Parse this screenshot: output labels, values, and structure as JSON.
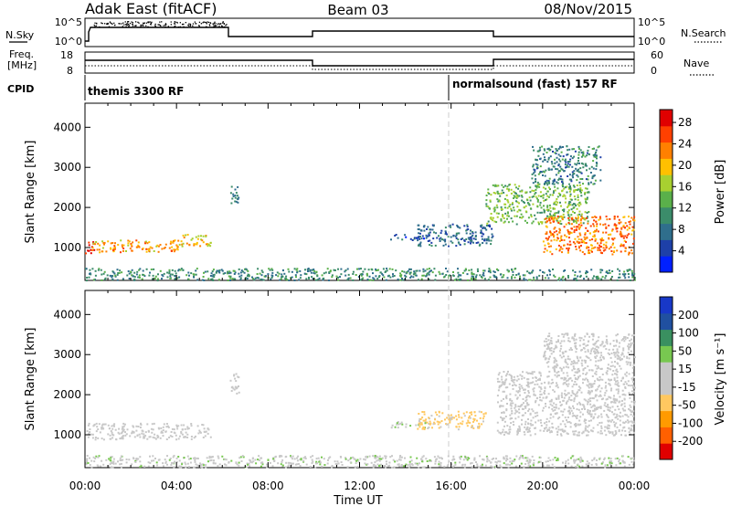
{
  "header": {
    "station": "Adak East (fitACF)",
    "beam": "Beam 03",
    "date": "08/Nov/2015"
  },
  "summary_panel": {
    "nsky_label": "N.Sky",
    "nsky_ticks": [
      "10^5",
      "10^0"
    ],
    "nsearch_label": "N.Search",
    "nsearch_ticks": [
      "10^5",
      "10^0"
    ],
    "freq_label_line1": "Freq.",
    "freq_label_line2": "[MHz]",
    "freq_ticks": [
      "18",
      "8"
    ],
    "nave_label": "Nave",
    "nave_ticks": [
      "60",
      "0"
    ],
    "cpid_label": "CPID",
    "cpid_entries": [
      {
        "text": "themis 3300 RF",
        "start_hour": 0
      },
      {
        "text": "normalsound (fast) 157 RF",
        "start_hour": 16
      }
    ]
  },
  "colors": {
    "power_scale": [
      "#0020ff",
      "#1e40a8",
      "#2f6e8c",
      "#3b8c6a",
      "#5ab04a",
      "#a8d030",
      "#ffc000",
      "#ff8000",
      "#ff4000",
      "#e00000"
    ],
    "velocity_scale": [
      "#e00000",
      "#ff6000",
      "#ff9a00",
      "#ffc860",
      "#c8c8c8",
      "#c8c8c8",
      "#78c850",
      "#3a9060",
      "#2050a0",
      "#1838c8"
    ]
  },
  "chart_data": [
    {
      "type": "heatmap",
      "panel": "power",
      "xlabel": "Time UT",
      "ylabel": "Slant Range [km]",
      "xlim": [
        0,
        24
      ],
      "ylim": [
        180,
        4600
      ],
      "xticks": [
        "00:00",
        "04:00",
        "08:00",
        "12:00",
        "16:00",
        "20:00",
        "00:00"
      ],
      "yticks": [
        "1000",
        "2000",
        "3000",
        "4000"
      ],
      "ytick_values": [
        1000,
        2000,
        3000,
        4000
      ],
      "marker_hour": 16,
      "colorbar": {
        "label": "Power [dB]",
        "ticks": [
          "4",
          "8",
          "12",
          "16",
          "20",
          "24",
          "28"
        ],
        "range": [
          0,
          30
        ]
      },
      "regions": [
        {
          "x": [
            0.0,
            0.4
          ],
          "y": [
            850,
            1200
          ],
          "value": 27
        },
        {
          "x": [
            0.3,
            4.2
          ],
          "y": [
            900,
            1200
          ],
          "value": 21
        },
        {
          "x": [
            4.2,
            5.5
          ],
          "y": [
            1050,
            1350
          ],
          "value": 19
        },
        {
          "x": [
            6.3,
            6.7
          ],
          "y": [
            2050,
            2550
          ],
          "value": 9
        },
        {
          "x": [
            13.3,
            15.0
          ],
          "y": [
            1200,
            1350
          ],
          "value": 6
        },
        {
          "x": [
            14.5,
            17.8
          ],
          "y": [
            1050,
            1600
          ],
          "value": 7
        },
        {
          "x": [
            17.5,
            22.0
          ],
          "y": [
            1600,
            2600
          ],
          "value": 14
        },
        {
          "x": [
            20.0,
            24.0
          ],
          "y": [
            850,
            1800
          ],
          "value": 23
        },
        {
          "x": [
            19.5,
            22.5
          ],
          "y": [
            2600,
            3550
          ],
          "value": 9
        },
        {
          "x": [
            0.0,
            24.0
          ],
          "y": [
            200,
            500
          ],
          "value": 10
        }
      ]
    },
    {
      "type": "heatmap",
      "panel": "velocity",
      "xlabel": "Time UT",
      "ylabel": "Slant Range [km]",
      "xlim": [
        0,
        24
      ],
      "ylim": [
        180,
        4600
      ],
      "xticks": [
        "00:00",
        "04:00",
        "08:00",
        "12:00",
        "16:00",
        "20:00",
        "00:00"
      ],
      "yticks": [
        "1000",
        "2000",
        "3000",
        "4000"
      ],
      "ytick_values": [
        1000,
        2000,
        3000,
        4000
      ],
      "marker_hour": 16,
      "colorbar": {
        "label": "Velocity [m s⁻¹]",
        "ticks": [
          "200",
          "100",
          "50",
          "15",
          "-15",
          "-50",
          "-100",
          "-200"
        ],
        "range": [
          -250,
          250
        ]
      },
      "regions": [
        {
          "x": [
            0.0,
            5.5
          ],
          "y": [
            900,
            1300
          ],
          "value": 0
        },
        {
          "x": [
            6.3,
            6.7
          ],
          "y": [
            2000,
            2550
          ],
          "value": 0
        },
        {
          "x": [
            13.3,
            15.0
          ],
          "y": [
            1200,
            1350
          ],
          "value": 40
        },
        {
          "x": [
            14.5,
            17.5
          ],
          "y": [
            1150,
            1600
          ],
          "value": -70
        },
        {
          "x": [
            18.0,
            24.0
          ],
          "y": [
            1000,
            2600
          ],
          "value": 0
        },
        {
          "x": [
            20.0,
            24.0
          ],
          "y": [
            2600,
            3550
          ],
          "value": 5
        },
        {
          "x": [
            0.0,
            24.0
          ],
          "y": [
            200,
            500
          ],
          "value": 30
        }
      ]
    }
  ]
}
